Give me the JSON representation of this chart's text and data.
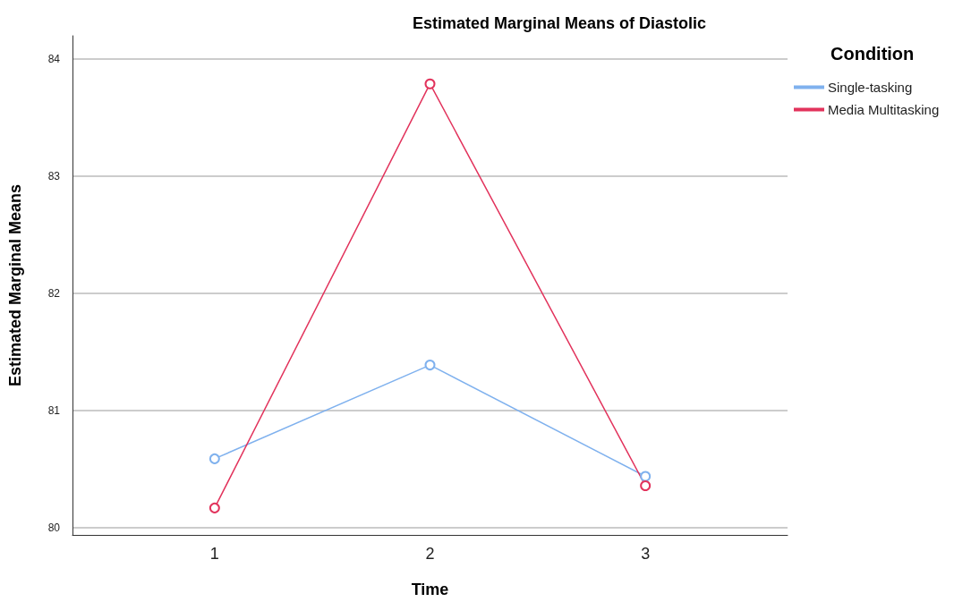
{
  "chart_data": {
    "type": "line",
    "title": "Estimated Marginal Means of Diastolic",
    "xlabel": "Time",
    "ylabel": "Estimated Marginal Means",
    "legend_title": "Condition",
    "x": [
      1,
      2,
      3
    ],
    "xlim": [
      0.34,
      3.66
    ],
    "xticks": [
      1,
      2,
      3
    ],
    "ylim": [
      79.94,
      84.2
    ],
    "yticks": [
      80,
      81,
      82,
      83,
      84
    ],
    "series": [
      {
        "name": "Single-tasking",
        "color": "#7fb1ee",
        "values": [
          80.59,
          81.39,
          80.44
        ]
      },
      {
        "name": "Media Multitasking",
        "color": "#e2335c",
        "values": [
          80.17,
          83.79,
          80.36
        ]
      }
    ],
    "grid": "y",
    "legend": "top right",
    "marker": "circle",
    "line_style": "solid"
  }
}
